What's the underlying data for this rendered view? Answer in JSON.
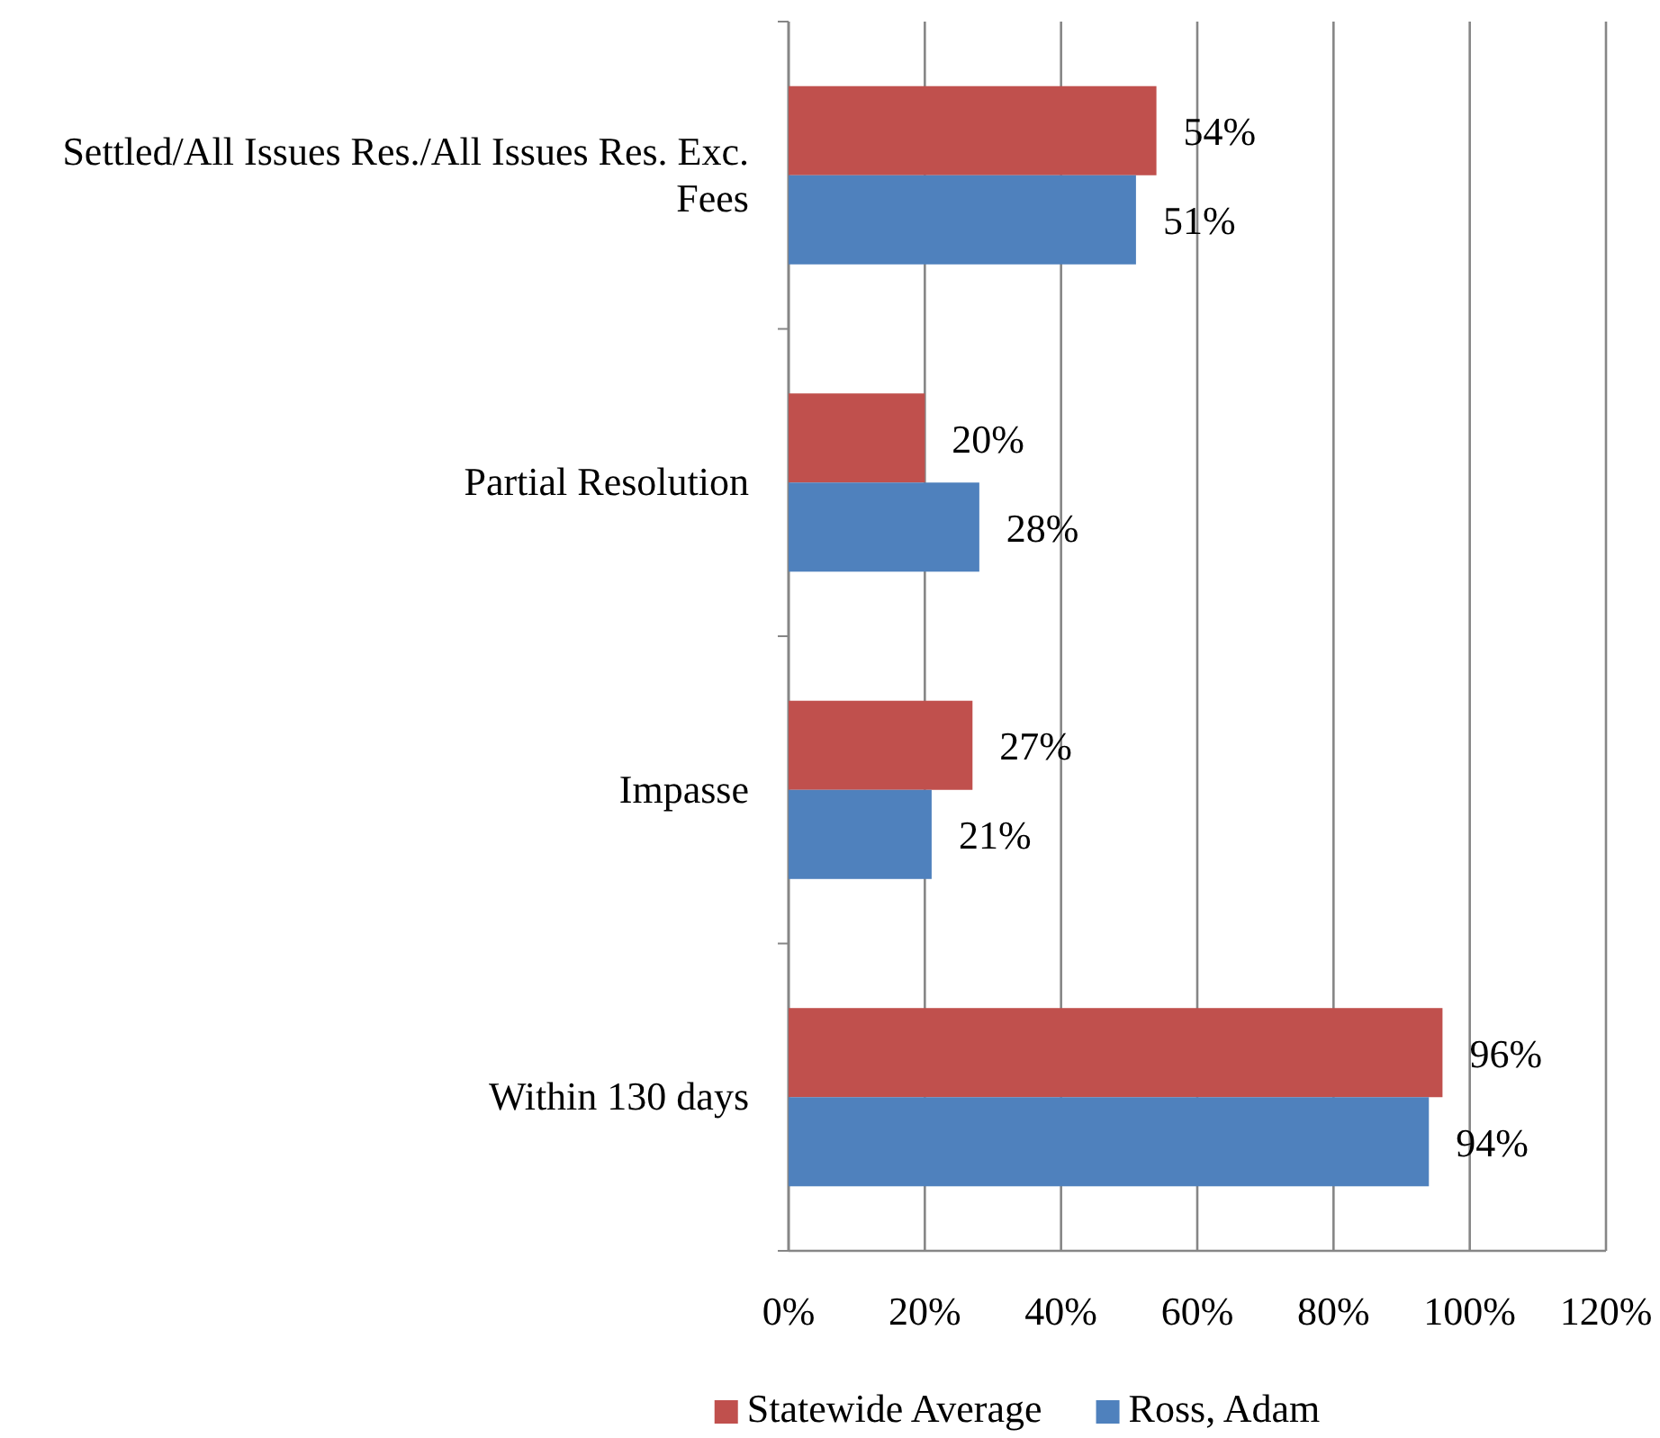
{
  "chart_data": {
    "type": "bar",
    "orientation": "horizontal",
    "categories": [
      "Settled/All Issues Res./All Issues Res. Exc. Fees",
      "Partial Resolution",
      "Impasse",
      "Within 130 days"
    ],
    "series": [
      {
        "name": "Statewide Average",
        "color": "#c0504d",
        "values": [
          54,
          20,
          27,
          96
        ],
        "value_labels": [
          "54%",
          "20%",
          "27%",
          "96%"
        ]
      },
      {
        "name": "Ross, Adam",
        "color": "#4f81bd",
        "values": [
          51,
          28,
          21,
          94
        ],
        "value_labels": [
          "51%",
          "28%",
          "21%",
          "94%"
        ]
      }
    ],
    "xlim": [
      0,
      120
    ],
    "xticks": [
      {
        "value": 0,
        "label": "0%"
      },
      {
        "value": 20,
        "label": "20%"
      },
      {
        "value": 40,
        "label": "40%"
      },
      {
        "value": 60,
        "label": "60%"
      },
      {
        "value": 80,
        "label": "80%"
      },
      {
        "value": 100,
        "label": "100%"
      },
      {
        "value": 120,
        "label": "120%"
      }
    ],
    "grid": "x",
    "legend": "bottom"
  }
}
